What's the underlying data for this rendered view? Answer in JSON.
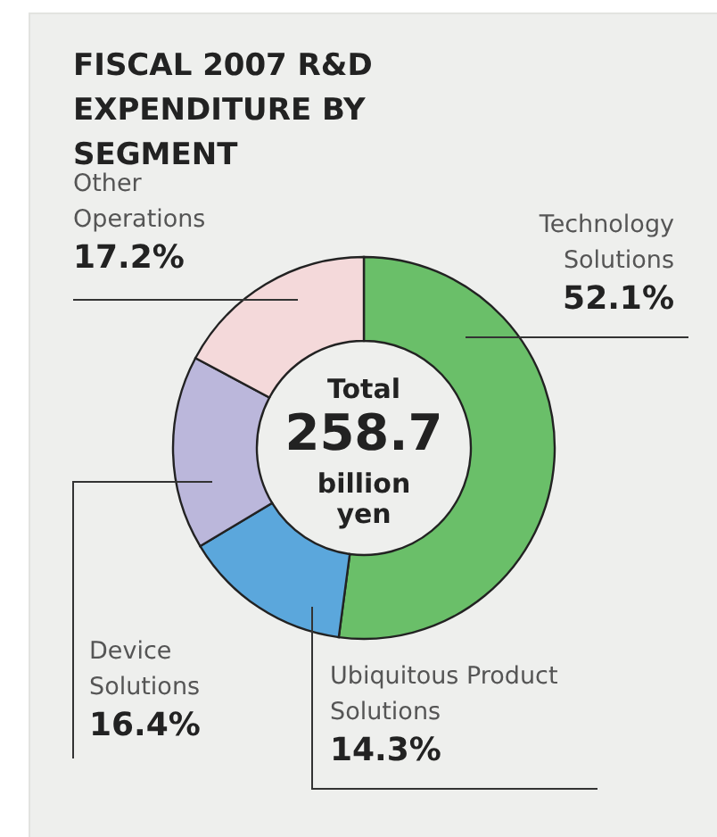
{
  "chart_data": {
    "type": "donut",
    "title": "FISCAL 2007 R&D EXPENDITURE BY SEGMENT",
    "categories": [
      "Technology Solutions",
      "Ubiquitous Product Solutions",
      "Device Solutions",
      "Other Operations"
    ],
    "values": [
      52.1,
      14.3,
      16.4,
      17.2
    ],
    "colors": [
      "#6abf69",
      "#5ba7dc",
      "#bbb7db",
      "#f4d9da"
    ],
    "value_labels": [
      "52.1%",
      "14.3%",
      "16.4%",
      "17.2%"
    ],
    "annotations": [
      "Total",
      "258.7",
      "billion yen"
    ]
  }
}
